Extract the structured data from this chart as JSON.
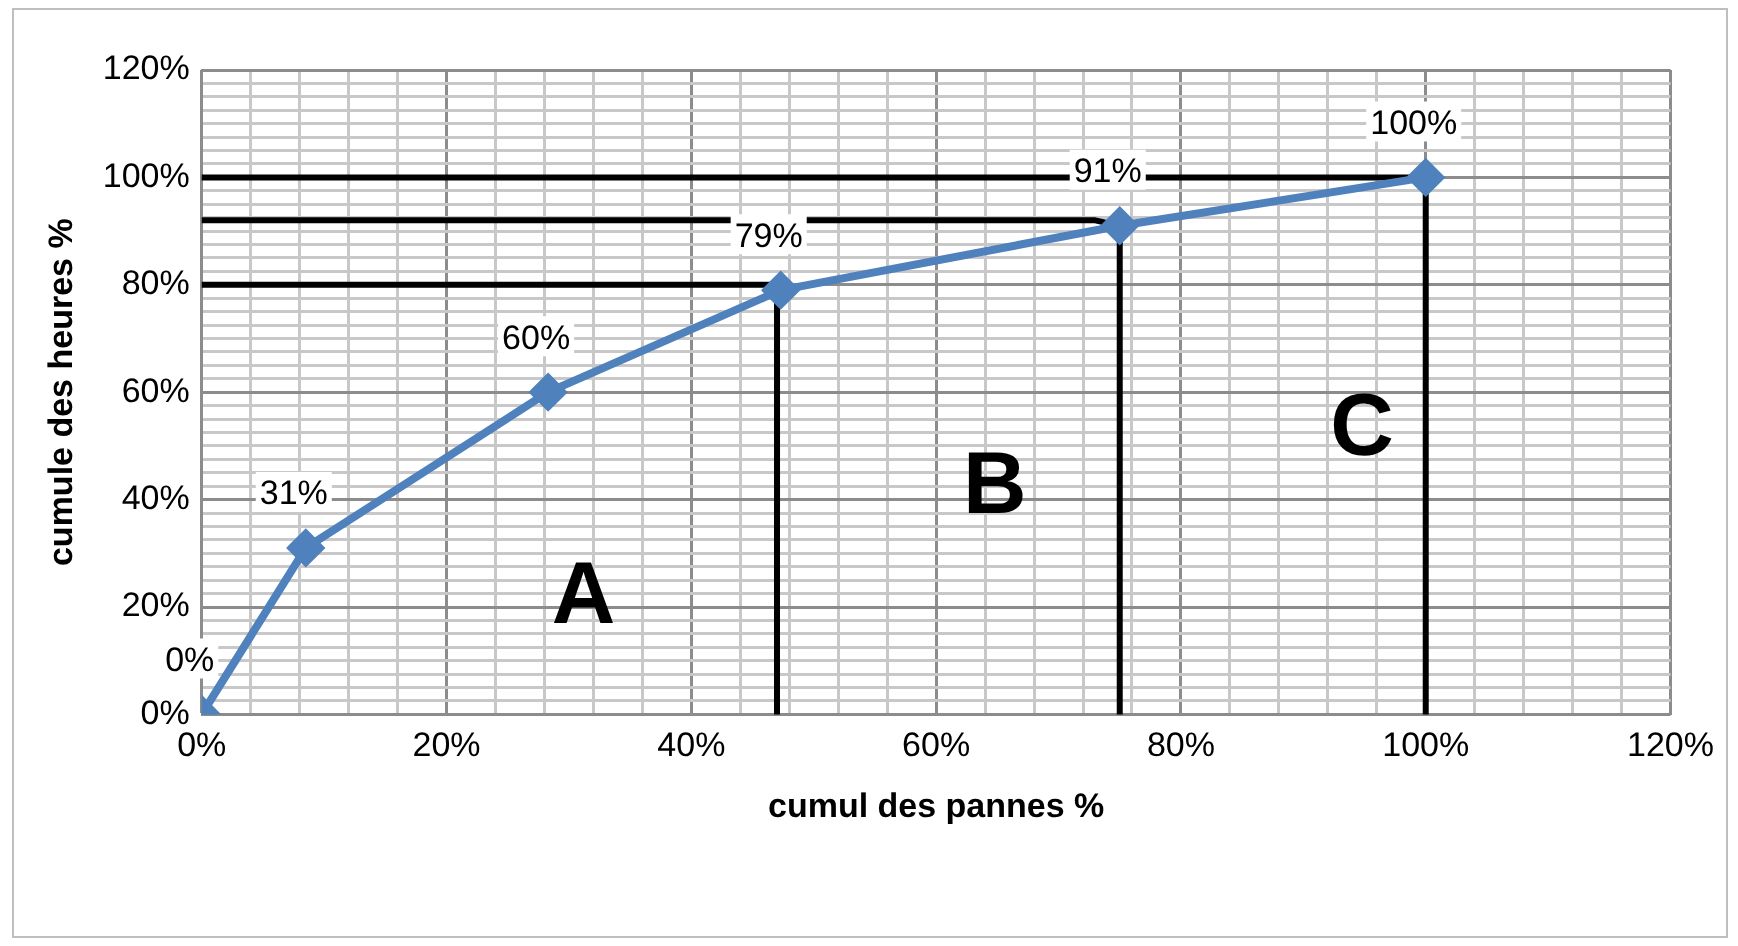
{
  "chart_data": {
    "type": "line",
    "xlabel": "cumul des pannes %",
    "ylabel": "cumule des heures %",
    "xlim": [
      0,
      120
    ],
    "ylim": [
      0,
      120
    ],
    "xticks": [
      {
        "value": 0,
        "label": "0%"
      },
      {
        "value": 4,
        "label": null
      },
      {
        "value": 8,
        "label": null
      },
      {
        "value": 12,
        "label": null
      },
      {
        "value": 16,
        "label": null
      },
      {
        "value": 20,
        "label": "20%"
      },
      {
        "value": 24,
        "label": null
      },
      {
        "value": 28,
        "label": null
      },
      {
        "value": 32,
        "label": null
      },
      {
        "value": 36,
        "label": null
      },
      {
        "value": 40,
        "label": "40%"
      },
      {
        "value": 44,
        "label": null
      },
      {
        "value": 48,
        "label": null
      },
      {
        "value": 52,
        "label": null
      },
      {
        "value": 56,
        "label": null
      },
      {
        "value": 60,
        "label": "60%"
      },
      {
        "value": 64,
        "label": null
      },
      {
        "value": 68,
        "label": null
      },
      {
        "value": 72,
        "label": null
      },
      {
        "value": 76,
        "label": null
      },
      {
        "value": 80,
        "label": "80%"
      },
      {
        "value": 84,
        "label": null
      },
      {
        "value": 88,
        "label": null
      },
      {
        "value": 92,
        "label": null
      },
      {
        "value": 96,
        "label": null
      },
      {
        "value": 100,
        "label": "100%"
      },
      {
        "value": 104,
        "label": null
      },
      {
        "value": 108,
        "label": null
      },
      {
        "value": 112,
        "label": null
      },
      {
        "value": 116,
        "label": null
      },
      {
        "value": 120,
        "label": "120%"
      }
    ],
    "yticks": [
      {
        "value": 0,
        "label": "0%"
      },
      {
        "value": 2.5,
        "label": null
      },
      {
        "value": 5,
        "label": null
      },
      {
        "value": 7.5,
        "label": null
      },
      {
        "value": 10,
        "label": null
      },
      {
        "value": 12.5,
        "label": null
      },
      {
        "value": 15,
        "label": null
      },
      {
        "value": 17.5,
        "label": null
      },
      {
        "value": 20,
        "label": "20%"
      },
      {
        "value": 22.5,
        "label": null
      },
      {
        "value": 25,
        "label": null
      },
      {
        "value": 27.5,
        "label": null
      },
      {
        "value": 30,
        "label": null
      },
      {
        "value": 32.5,
        "label": null
      },
      {
        "value": 35,
        "label": null
      },
      {
        "value": 37.5,
        "label": null
      },
      {
        "value": 40,
        "label": "40%"
      },
      {
        "value": 42.5,
        "label": null
      },
      {
        "value": 45,
        "label": null
      },
      {
        "value": 47.5,
        "label": null
      },
      {
        "value": 50,
        "label": null
      },
      {
        "value": 52.5,
        "label": null
      },
      {
        "value": 55,
        "label": null
      },
      {
        "value": 57.5,
        "label": null
      },
      {
        "value": 60,
        "label": "60%"
      },
      {
        "value": 62.5,
        "label": null
      },
      {
        "value": 65,
        "label": null
      },
      {
        "value": 67.5,
        "label": null
      },
      {
        "value": 70,
        "label": null
      },
      {
        "value": 72.5,
        "label": null
      },
      {
        "value": 75,
        "label": null
      },
      {
        "value": 77.5,
        "label": null
      },
      {
        "value": 80,
        "label": "80%"
      },
      {
        "value": 82.5,
        "label": null
      },
      {
        "value": 85,
        "label": null
      },
      {
        "value": 87.5,
        "label": null
      },
      {
        "value": 90,
        "label": null
      },
      {
        "value": 92.5,
        "label": null
      },
      {
        "value": 95,
        "label": null
      },
      {
        "value": 97.5,
        "label": null
      },
      {
        "value": 100,
        "label": "100%"
      },
      {
        "value": 102.5,
        "label": null
      },
      {
        "value": 105,
        "label": null
      },
      {
        "value": 107.5,
        "label": null
      },
      {
        "value": 110,
        "label": null
      },
      {
        "value": 112.5,
        "label": null
      },
      {
        "value": 115,
        "label": null
      },
      {
        "value": 117.5,
        "label": null
      },
      {
        "value": 120,
        "label": "120%"
      }
    ],
    "grid": true,
    "legend": false,
    "series": [
      {
        "color": "#4f81bd",
        "marker": "diamond",
        "x": [
          0,
          8.5,
          28.3,
          47.3,
          75,
          100
        ],
        "values": [
          0,
          31,
          60,
          79,
          91,
          100
        ],
        "value_labels": [
          "0%",
          "31%",
          "60%",
          "79%",
          "91%",
          "100%"
        ]
      },
      {
        "color": "#000000",
        "marker": "none",
        "x": [
          0,
          47,
          47
        ],
        "values": [
          80,
          80,
          0
        ]
      },
      {
        "color": "#000000",
        "marker": "none",
        "x": [
          0,
          73,
          75,
          75
        ],
        "values": [
          92,
          92,
          91,
          0
        ]
      },
      {
        "color": "#000000",
        "marker": "none",
        "x": [
          0,
          100,
          100
        ],
        "values": [
          100,
          100,
          0
        ]
      }
    ],
    "annotations": [
      "A",
      "B",
      "C"
    ]
  }
}
